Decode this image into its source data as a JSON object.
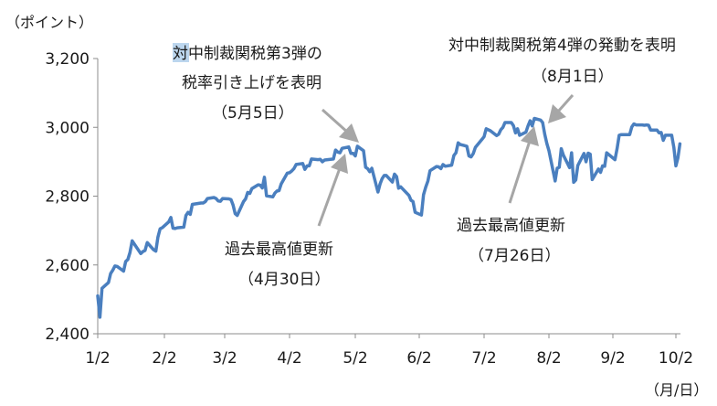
{
  "chart_data": {
    "type": "line",
    "title": "",
    "ylabel": "（ポイント）",
    "xlabel": "（月/日）",
    "ylim": [
      2400,
      3200
    ],
    "yticks": [
      2400,
      2600,
      2800,
      3000,
      3200
    ],
    "ytick_labels": [
      "2,400",
      "2,600",
      "2,800",
      "3,000",
      "3,200"
    ],
    "xtick_labels": [
      "1/2",
      "2/2",
      "3/2",
      "4/2",
      "5/2",
      "6/2",
      "7/2",
      "8/2",
      "9/2",
      "10/2"
    ],
    "grid": false,
    "line_color": "#4a7fbf",
    "arrow_color": "#a6a6a6",
    "highlight_color": "#bcd6ee",
    "series": [
      {
        "x": [
          "1/2",
          "1/3",
          "1/4",
          "1/7",
          "1/8",
          "1/9",
          "1/10",
          "1/11",
          "1/14",
          "1/15",
          "1/16",
          "1/17",
          "1/18",
          "1/22",
          "1/23",
          "1/24",
          "1/25",
          "1/28",
          "1/29",
          "1/30",
          "1/31",
          "2/1",
          "2/4",
          "2/5",
          "2/6",
          "2/7",
          "2/8",
          "2/11",
          "2/12",
          "2/13",
          "2/14",
          "2/15",
          "2/19",
          "2/20",
          "2/21",
          "2/22",
          "2/25",
          "2/26",
          "2/27",
          "2/28",
          "3/1",
          "3/4",
          "3/5",
          "3/6",
          "3/7",
          "3/8",
          "3/11",
          "3/12",
          "3/13",
          "3/14",
          "3/15",
          "3/18",
          "3/19",
          "3/20",
          "3/21",
          "3/22",
          "3/25",
          "3/26",
          "3/27",
          "3/28",
          "3/29",
          "4/1",
          "4/2",
          "4/3",
          "4/4",
          "4/5",
          "4/8",
          "4/9",
          "4/10",
          "4/11",
          "4/12",
          "4/15",
          "4/16",
          "4/17",
          "4/18",
          "4/22",
          "4/23",
          "4/24",
          "4/25",
          "4/26",
          "4/29",
          "4/30",
          "5/1",
          "5/2",
          "5/3",
          "5/6",
          "5/7",
          "5/8",
          "5/9",
          "5/10",
          "5/13",
          "5/14",
          "5/15",
          "5/16",
          "5/17",
          "5/20",
          "5/21",
          "5/22",
          "5/23",
          "5/24",
          "5/28",
          "5/29",
          "5/30",
          "5/31",
          "6/3",
          "6/4",
          "6/5",
          "6/6",
          "6/7",
          "6/10",
          "6/11",
          "6/12",
          "6/13",
          "6/14",
          "6/17",
          "6/18",
          "6/19",
          "6/20",
          "6/21",
          "6/24",
          "6/25",
          "6/26",
          "6/27",
          "6/28",
          "7/1",
          "7/2",
          "7/3",
          "7/5",
          "7/8",
          "7/9",
          "7/10",
          "7/11",
          "7/12",
          "7/15",
          "7/16",
          "7/17",
          "7/18",
          "7/19",
          "7/22",
          "7/23",
          "7/24",
          "7/25",
          "7/26",
          "7/29",
          "7/30",
          "7/31",
          "8/1",
          "8/2",
          "8/5",
          "8/6",
          "8/7",
          "8/8",
          "8/9",
          "8/12",
          "8/13",
          "8/14",
          "8/15",
          "8/16",
          "8/19",
          "8/20",
          "8/21",
          "8/22",
          "8/23",
          "8/26",
          "8/27",
          "8/28",
          "8/29",
          "8/30",
          "9/3",
          "9/4",
          "9/5",
          "9/6",
          "9/9",
          "9/10",
          "9/11",
          "9/12",
          "9/13",
          "9/16",
          "9/17",
          "9/18",
          "9/19",
          "9/20",
          "9/23",
          "9/24",
          "9/25",
          "9/26",
          "9/27",
          "9/30",
          "10/1",
          "10/2",
          "10/3",
          "10/4"
        ],
        "values": [
          2510,
          2448,
          2532,
          2549,
          2575,
          2585,
          2597,
          2596,
          2582,
          2610,
          2616,
          2636,
          2670,
          2633,
          2639,
          2642,
          2665,
          2644,
          2640,
          2681,
          2705,
          2708,
          2725,
          2738,
          2707,
          2706,
          2708,
          2710,
          2744,
          2753,
          2747,
          2776,
          2780,
          2780,
          2784,
          2793,
          2796,
          2793,
          2786,
          2785,
          2793,
          2792,
          2790,
          2774,
          2749,
          2744,
          2784,
          2792,
          2811,
          2808,
          2822,
          2833,
          2832,
          2824,
          2855,
          2801,
          2798,
          2809,
          2815,
          2816,
          2835,
          2867,
          2868,
          2873,
          2880,
          2892,
          2895,
          2878,
          2888,
          2888,
          2908,
          2906,
          2907,
          2900,
          2905,
          2908,
          2934,
          2928,
          2926,
          2939,
          2943,
          2924,
          2924,
          2917,
          2945,
          2932,
          2884,
          2880,
          2871,
          2881,
          2812,
          2835,
          2851,
          2860,
          2860,
          2841,
          2864,
          2857,
          2823,
          2827,
          2802,
          2788,
          2784,
          2753,
          2745,
          2804,
          2826,
          2844,
          2874,
          2886,
          2885,
          2880,
          2892,
          2887,
          2890,
          2918,
          2926,
          2955,
          2950,
          2945,
          2917,
          2914,
          2924,
          2942,
          2965,
          2973,
          2996,
          2990,
          2976,
          2980,
          2993,
          3000,
          3014,
          3014,
          3005,
          2984,
          2996,
          2977,
          2986,
          3004,
          3019,
          3004,
          3026,
          3021,
          3014,
          2980,
          2953,
          2932,
          2844,
          2881,
          2884,
          2938,
          2919,
          2883,
          2926,
          2840,
          2847,
          2889,
          2924,
          2900,
          2925,
          2922,
          2848,
          2879,
          2869,
          2888,
          2887,
          2926,
          2906,
          2938,
          2977,
          2979,
          2979,
          2979,
          3001,
          3010,
          3007,
          3007,
          3006,
          3007,
          3006,
          2992,
          2992,
          2984,
          2985,
          2962,
          2977,
          2977,
          2941,
          2888,
          2911,
          2952
        ]
      }
    ],
    "annotations": [
      {
        "lines": [
          "対中制裁関税第3弾の",
          "税率引き上げを表明",
          "（5月5日）"
        ],
        "highlight": "対"
      },
      {
        "lines": [
          "過去最高値更新",
          "（4月30日）"
        ]
      },
      {
        "lines": [
          "対中制裁関税第4弾の発動を表明",
          "（8月1日）"
        ]
      },
      {
        "lines": [
          "過去最高値更新",
          "（7月26日）"
        ]
      }
    ]
  }
}
